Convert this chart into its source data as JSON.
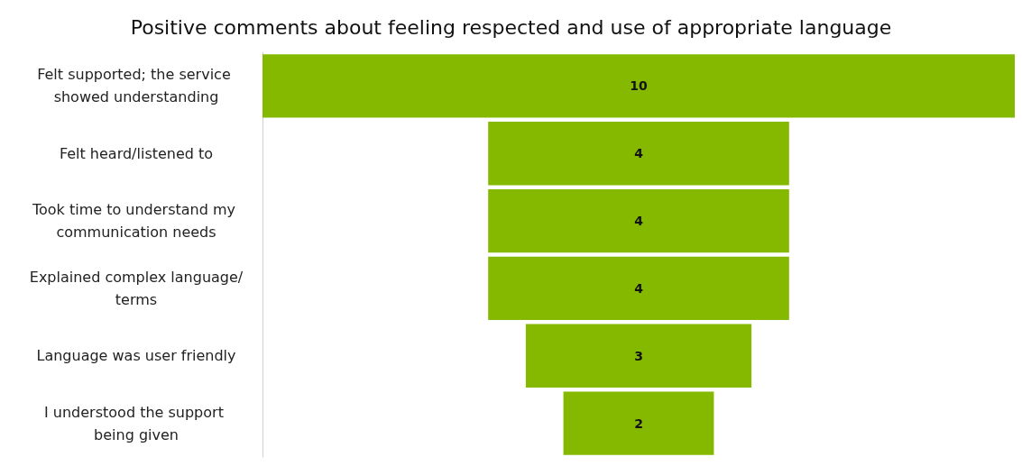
{
  "chart_data": {
    "type": "other",
    "title": "Positive comments about feeling respected and use of appropriate language",
    "categories": [
      "Felt supported; the service showed understanding",
      "Felt heard/listened to",
      "Took time to understand my communication needs",
      "Explained complex language/terms",
      "Language was user friendly",
      "I understood the support being given"
    ],
    "values": [
      10,
      4,
      4,
      4,
      3,
      2
    ],
    "color": "#84b900",
    "data_labels": true
  }
}
